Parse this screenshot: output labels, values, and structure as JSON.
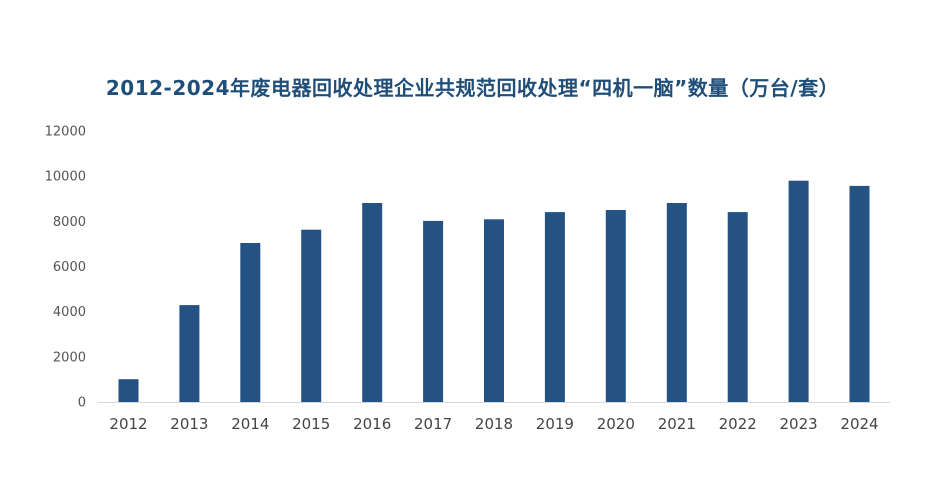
{
  "chart_data": {
    "type": "bar",
    "title": "2012-2024年废电器回收处理企业共规范回收处理“四机一脑”数量（万台/套）",
    "xlabel": "",
    "ylabel": "",
    "categories": [
      "2012",
      "2013",
      "2014",
      "2015",
      "2016",
      "2017",
      "2018",
      "2019",
      "2020",
      "2021",
      "2022",
      "2023",
      "2024"
    ],
    "values": [
      1010,
      4290,
      7040,
      7630,
      8810,
      8020,
      8090,
      8410,
      8500,
      8810,
      8410,
      9800,
      9570
    ],
    "ylim": [
      0,
      12000
    ],
    "yticks": [
      0,
      2000,
      4000,
      6000,
      8000,
      10000,
      12000
    ],
    "grid": false,
    "legend": "none",
    "bar_color": "#245283",
    "axis_color": "#d9d9d9",
    "title_color": "#1f4e79"
  }
}
